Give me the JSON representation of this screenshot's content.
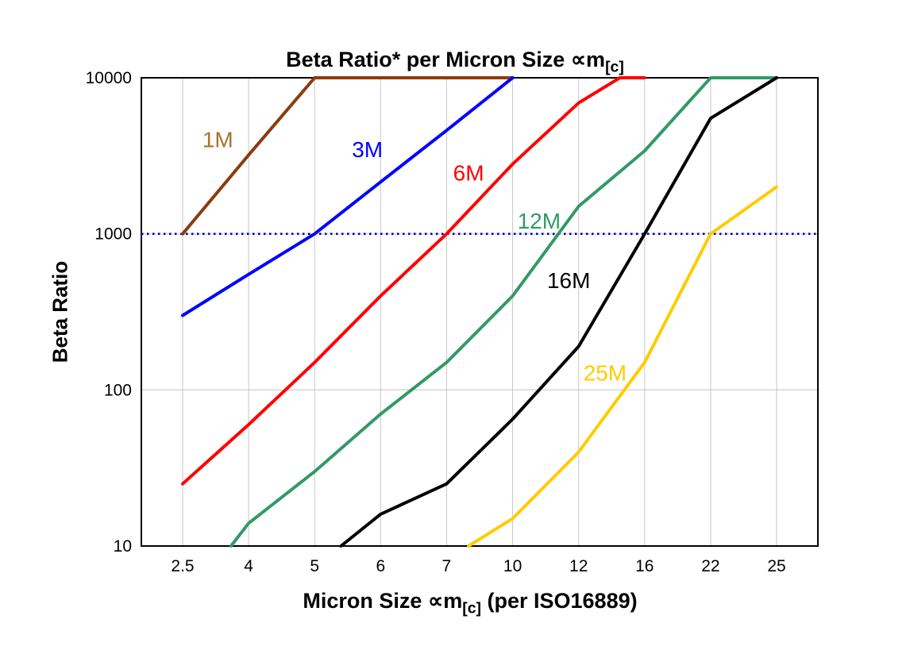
{
  "title": {
    "main": "Beta Ratio* per Micron Size ∝m",
    "sub": "[c]"
  },
  "y_axis_title": "Beta Ratio",
  "x_axis_title": {
    "main": "Micron Size ∝m",
    "sub": "[c]",
    "suffix": " (per ISO16889)"
  },
  "chart_data": {
    "type": "line",
    "y_scale": "log",
    "x_type": "categorical",
    "title": "Beta Ratio* per Micron Size ∝m[c]",
    "xlabel": "Micron Size ∝m[c] (per ISO16889)",
    "ylabel": "Beta Ratio",
    "categories": [
      2.5,
      4,
      5,
      6,
      7,
      10,
      12,
      16,
      22,
      25
    ],
    "y_ticks": [
      10,
      100,
      1000,
      10000
    ],
    "ylim": [
      10,
      10000
    ],
    "grid": true,
    "grid_color": "#c6c6c6",
    "reference_line": {
      "y": 1000,
      "color": "#0000cc",
      "style": "dotted"
    },
    "series": [
      {
        "name": "1M",
        "color": "#8b3c10",
        "label_color": "#a5752d",
        "label_pos": {
          "micron": 3.3,
          "beta": 3600
        },
        "points": [
          [
            2.5,
            1000
          ],
          [
            4,
            3200
          ],
          [
            5,
            10000
          ],
          [
            10,
            10000
          ]
        ]
      },
      {
        "name": "3M",
        "color": "#0000ff",
        "label_color": "#0000ff",
        "label_pos": {
          "micron": 5.8,
          "beta": 3100
        },
        "points": [
          [
            2.5,
            300
          ],
          [
            4,
            550
          ],
          [
            5,
            1000
          ],
          [
            6,
            2150
          ],
          [
            7,
            4600
          ],
          [
            10,
            10000
          ]
        ]
      },
      {
        "name": "6M",
        "color": "#ff0000",
        "label_color": "#ff0000",
        "label_pos": {
          "micron": 8.0,
          "beta": 2200
        },
        "points": [
          [
            2.5,
            25
          ],
          [
            4,
            60
          ],
          [
            5,
            150
          ],
          [
            6,
            400
          ],
          [
            7,
            1000
          ],
          [
            10,
            2800
          ],
          [
            12,
            6900
          ],
          [
            14.5,
            10000
          ],
          [
            16,
            10000
          ]
        ]
      },
      {
        "name": "12M",
        "color": "#339966",
        "label_color": "#339966",
        "label_pos": {
          "micron": 10.8,
          "beta": 1080
        },
        "points": [
          [
            3.6,
            10
          ],
          [
            4,
            14
          ],
          [
            5,
            30
          ],
          [
            6,
            70
          ],
          [
            7,
            150
          ],
          [
            10,
            400
          ],
          [
            12,
            1500
          ],
          [
            16,
            3400
          ],
          [
            22,
            10000
          ],
          [
            25,
            10000
          ]
        ]
      },
      {
        "name": "16M",
        "color": "#000000",
        "label_color": "#000000",
        "label_pos": {
          "micron": 11.7,
          "beta": 450
        },
        "points": [
          [
            5.4,
            10
          ],
          [
            6,
            16
          ],
          [
            7,
            25
          ],
          [
            10,
            65
          ],
          [
            12,
            190
          ],
          [
            16,
            1000
          ],
          [
            22,
            5500
          ],
          [
            25,
            10000
          ]
        ]
      },
      {
        "name": "25M",
        "color": "#ffcc00",
        "label_color": "#ffcc00",
        "label_pos": {
          "micron": 13.6,
          "beta": 115
        },
        "points": [
          [
            8,
            10
          ],
          [
            10,
            15
          ],
          [
            12,
            40
          ],
          [
            16,
            150
          ],
          [
            22,
            1000
          ],
          [
            25,
            2000
          ]
        ]
      }
    ]
  }
}
